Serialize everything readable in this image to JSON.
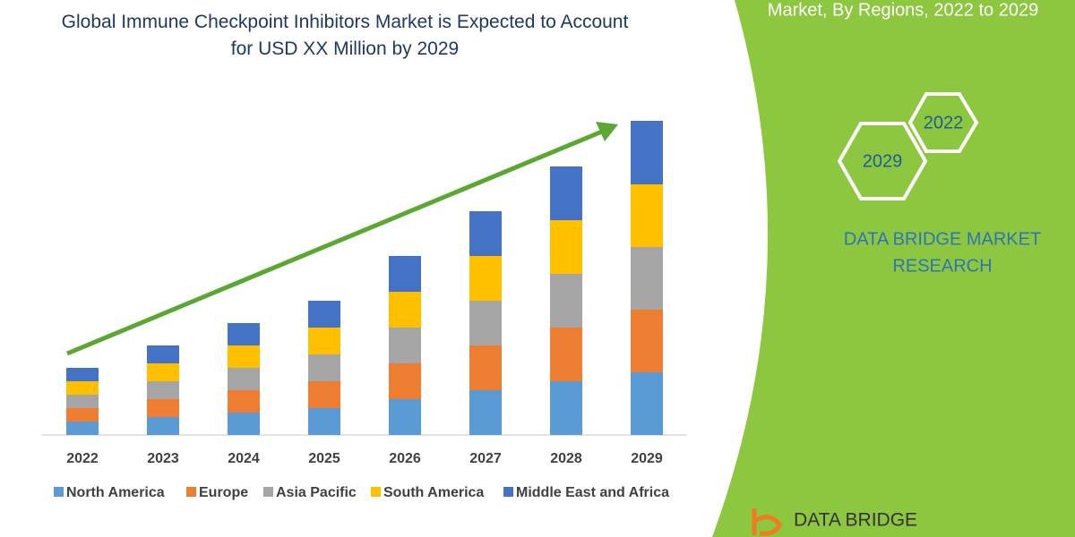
{
  "chart_data": {
    "type": "stacked_bar",
    "title": "Global Immune Checkpoint Inhibitors Market is Expected to Account for USD XX Million by 2029",
    "categories": [
      "2022",
      "2023",
      "2024",
      "2025",
      "2026",
      "2027",
      "2028",
      "2029"
    ],
    "series": [
      {
        "name": "North America",
        "color": "#5b9bd5",
        "values": [
          15,
          20,
          25,
          30,
          40,
          50,
          60,
          70
        ]
      },
      {
        "name": "Europe",
        "color": "#ed7d31",
        "values": [
          15,
          20,
          25,
          30,
          40,
          50,
          60,
          70
        ]
      },
      {
        "name": "Asia Pacific",
        "color": "#a5a5a5",
        "values": [
          15,
          20,
          25,
          30,
          40,
          50,
          60,
          70
        ]
      },
      {
        "name": "South America",
        "color": "#ffc000",
        "values": [
          15,
          20,
          25,
          30,
          40,
          50,
          60,
          70
        ]
      },
      {
        "name": "Middle East and Africa",
        "color": "#4472c4",
        "values": [
          15,
          20,
          25,
          30,
          40,
          50,
          60,
          71
        ]
      }
    ],
    "ylim": [
      0,
      350
    ]
  },
  "side_panel": {
    "heading": "Market, By Regions, 2022 to 2029",
    "badges": [
      "2022",
      "2029"
    ],
    "brand": [
      "DATA BRIDGE MARKET",
      "RESEARCH"
    ],
    "logo": "DATA BRIDGE"
  }
}
